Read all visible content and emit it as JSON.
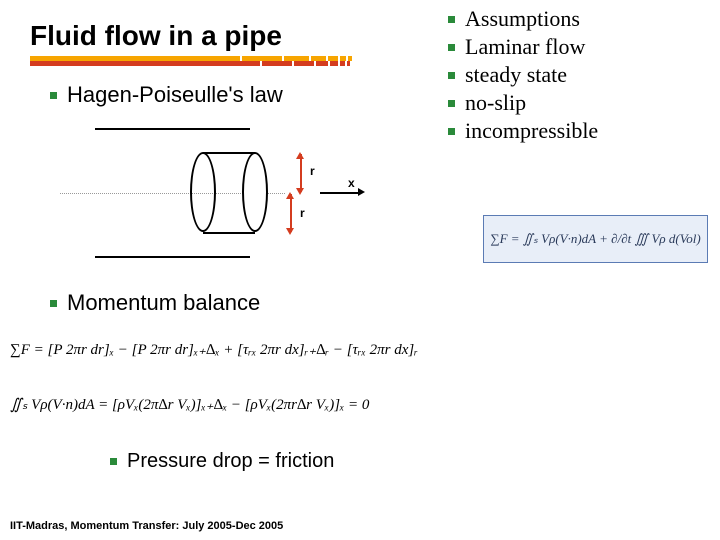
{
  "title": "Fluid flow in a pipe",
  "underline": {
    "top_color": "#f7a500",
    "bot_color": "#d43c1f",
    "top_segments_w": [
      210,
      40,
      25,
      15,
      10,
      6,
      4
    ],
    "bot_segments_w": [
      230,
      30,
      20,
      12,
      8,
      5,
      3
    ]
  },
  "bullet_color": "#2a8a3a",
  "items": {
    "hagen": "Hagen-Poiseulle's law",
    "momentum": "Momentum balance",
    "pressure": "Pressure drop = friction"
  },
  "assumptions": [
    "Assumptions",
    "Laminar flow",
    "steady state",
    "no-slip",
    "incompressible"
  ],
  "diagram": {
    "r_label": "r",
    "r2_label": "r",
    "x_label": "x",
    "red": "#d43c1f"
  },
  "eq_box": "∑F = ∬ₛ Vρ(V·n)dA + ∂/∂t ∭ Vρ d(Vol)",
  "eq1": "∑F = [P 2πr dr]ₓ − [P 2πr dr]ₓ₊∆ₓ + [τᵣₓ 2πr dx]ᵣ₊∆ᵣ − [τᵣₓ 2πr dx]ᵣ",
  "eq2": "∬ₛ Vρ(V·n)dA = [ρVₓ(2π∆r Vₓ)]ₓ₊∆ₓ − [ρVₓ(2πr∆r Vₓ)]ₓ = 0",
  "footer": "IIT-Madras, Momentum Transfer: July 2005-Dec 2005"
}
